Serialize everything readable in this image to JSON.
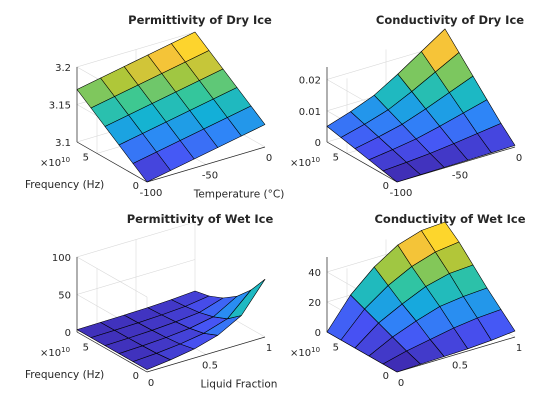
{
  "figure": {
    "background": "#ffffff",
    "colormap": "parula"
  },
  "chart_data": [
    {
      "type": "surface",
      "title": "Permittivity of Dry Ice",
      "xlabel": "Temperature (°C)",
      "ylabel": "Frequency (Hz)",
      "zlabel": "",
      "xticks": [
        {
          "v": -100,
          "label": "-100"
        },
        {
          "v": -50,
          "label": "-50"
        },
        {
          "v": 0,
          "label": "0"
        }
      ],
      "yticks": [
        {
          "v": 0,
          "label": "0"
        },
        {
          "v": 5,
          "label": "5"
        }
      ],
      "zticks": [
        {
          "v": 3.1,
          "label": "3.1"
        },
        {
          "v": 3.15,
          "label": "3.15"
        },
        {
          "v": 3.2,
          "label": "3.2"
        }
      ],
      "y_exponent": "×10¹⁰",
      "xlim": [
        -100,
        0
      ],
      "ylim": [
        0,
        7
      ],
      "zlim": [
        3.1,
        3.2
      ],
      "x": [
        -100,
        -80,
        -60,
        -40,
        -20,
        0
      ],
      "y": [
        0,
        1.4,
        2.8,
        4.2,
        5.6,
        7
      ],
      "z": [
        [
          3.1,
          3.106,
          3.112,
          3.118,
          3.124,
          3.13
        ],
        [
          3.114,
          3.12,
          3.126,
          3.132,
          3.138,
          3.144
        ],
        [
          3.128,
          3.134,
          3.14,
          3.146,
          3.152,
          3.158
        ],
        [
          3.142,
          3.148,
          3.154,
          3.16,
          3.166,
          3.172
        ],
        [
          3.156,
          3.162,
          3.168,
          3.174,
          3.18,
          3.186
        ],
        [
          3.17,
          3.176,
          3.182,
          3.188,
          3.194,
          3.2
        ]
      ]
    },
    {
      "type": "surface",
      "title": "Conductivity of Dry Ice",
      "xlabel": "",
      "ylabel": "",
      "zlabel": "",
      "xticks": [
        {
          "v": -100,
          "label": "-100"
        },
        {
          "v": -50,
          "label": "-50"
        },
        {
          "v": 0,
          "label": "0"
        }
      ],
      "yticks": [
        {
          "v": 0,
          "label": "0"
        },
        {
          "v": 5,
          "label": "5"
        }
      ],
      "zticks": [
        {
          "v": 0,
          "label": "0"
        },
        {
          "v": 0.01,
          "label": "0.01"
        },
        {
          "v": 0.02,
          "label": "0.02"
        }
      ],
      "y_exponent": "×10¹⁰",
      "xlim": [
        -100,
        0
      ],
      "ylim": [
        0,
        7
      ],
      "zlim": [
        0,
        0.024
      ],
      "x": [
        -100,
        -80,
        -60,
        -40,
        -20,
        0
      ],
      "y": [
        0,
        1.4,
        2.8,
        4.2,
        5.6,
        7
      ],
      "z": [
        [
          0.0,
          0.0001,
          0.0002,
          0.0003,
          0.0004,
          0.0005
        ],
        [
          0.001,
          0.0015,
          0.0021,
          0.003,
          0.004,
          0.005
        ],
        [
          0.002,
          0.003,
          0.0042,
          0.006,
          0.008,
          0.01
        ],
        [
          0.003,
          0.0045,
          0.0063,
          0.009,
          0.012,
          0.015
        ],
        [
          0.004,
          0.006,
          0.0084,
          0.012,
          0.016,
          0.02
        ],
        [
          0.005,
          0.0075,
          0.0105,
          0.015,
          0.02,
          0.025
        ]
      ]
    },
    {
      "type": "surface",
      "title": "Permittivity of Wet Ice",
      "xlabel": "Liquid Fraction",
      "ylabel": "Frequency (Hz)",
      "zlabel": "",
      "xticks": [
        {
          "v": 0,
          "label": "0"
        },
        {
          "v": 0.5,
          "label": "0.5"
        },
        {
          "v": 1,
          "label": "1"
        }
      ],
      "yticks": [
        {
          "v": 0,
          "label": "0"
        },
        {
          "v": 5,
          "label": "5"
        }
      ],
      "zticks": [
        {
          "v": 0,
          "label": "0"
        },
        {
          "v": 50,
          "label": "50"
        },
        {
          "v": 100,
          "label": "100"
        }
      ],
      "y_exponent": "×10¹⁰",
      "xlim": [
        0,
        1
      ],
      "ylim": [
        0,
        7
      ],
      "zlim": [
        0,
        100
      ],
      "x": [
        0,
        0.2,
        0.4,
        0.6,
        0.8,
        1.0
      ],
      "y": [
        0,
        1.4,
        2.8,
        4.2,
        5.6,
        7
      ],
      "z": [
        [
          3.2,
          7.0,
          12.0,
          21.0,
          38.0,
          77.0
        ],
        [
          3.2,
          5.0,
          8.0,
          13.0,
          23.0,
          52.0
        ],
        [
          3.2,
          4.3,
          6.0,
          9.0,
          15.0,
          33.0
        ],
        [
          3.2,
          3.9,
          5.0,
          7.0,
          10.0,
          20.0
        ],
        [
          3.2,
          3.6,
          4.3,
          5.5,
          7.5,
          12.0
        ],
        [
          3.2,
          3.4,
          3.9,
          4.6,
          5.8,
          8.0
        ]
      ]
    },
    {
      "type": "surface",
      "title": "Conductivity of Wet Ice",
      "xlabel": "",
      "ylabel": "",
      "zlabel": "",
      "xticks": [
        {
          "v": 0,
          "label": "0"
        },
        {
          "v": 0.5,
          "label": "0.5"
        },
        {
          "v": 1,
          "label": "1"
        }
      ],
      "yticks": [
        {
          "v": 0,
          "label": "0"
        },
        {
          "v": 5,
          "label": "5"
        }
      ],
      "zticks": [
        {
          "v": 0,
          "label": "0"
        },
        {
          "v": 20,
          "label": "20"
        },
        {
          "v": 40,
          "label": "40"
        }
      ],
      "y_exponent": "×10¹⁰",
      "xlim": [
        0,
        1
      ],
      "ylim": [
        0,
        7
      ],
      "zlim": [
        0,
        50
      ],
      "x": [
        0,
        0.2,
        0.4,
        0.6,
        0.8,
        1.0
      ],
      "y": [
        0,
        1.4,
        2.8,
        4.2,
        5.6,
        7
      ],
      "z": [
        [
          0.0,
          0.6,
          1.0,
          1.5,
          2.5,
          4.0
        ],
        [
          0.0,
          4.0,
          7.0,
          10.0,
          12.0,
          13.0
        ],
        [
          0.0,
          8.0,
          14.0,
          19.0,
          21.0,
          22.0
        ],
        [
          0.0,
          12.0,
          20.0,
          27.0,
          31.0,
          32.0
        ],
        [
          0.0,
          16.0,
          27.0,
          35.0,
          40.0,
          42.0
        ],
        [
          0.0,
          20.0,
          34.0,
          44.0,
          49.0,
          50.0
        ]
      ]
    }
  ]
}
